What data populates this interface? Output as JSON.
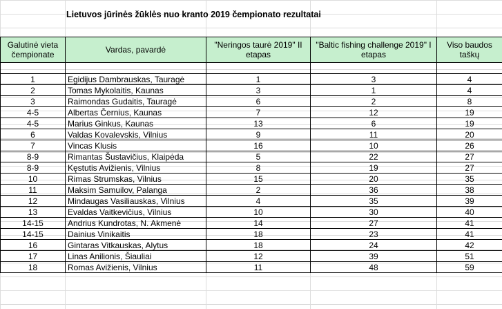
{
  "title": "Lietuvos jūrinės žūklės nuo kranto 2019 čempionato rezultatai",
  "headers": {
    "place": "Galutinė vieta čempionate",
    "name": "Vardas, pavardė",
    "stage2": "\"Neringos taurė 2019\" II etapas",
    "stage1": "\"Baltic fishing challenge 2019\" I etapas",
    "total": "Viso baudos taškų"
  },
  "header_fill": "#c6efce",
  "rows": [
    {
      "place": "1",
      "name": "Egidijus Dambrauskas, Tauragė",
      "s2": "1",
      "s1": "3",
      "total": "4"
    },
    {
      "place": "2",
      "name": "Tomas Mykolaitis, Kaunas",
      "s2": "3",
      "s1": "1",
      "total": "4"
    },
    {
      "place": "3",
      "name": "Raimondas Gudaitis, Tauragė",
      "s2": "6",
      "s1": "2",
      "total": "8"
    },
    {
      "place": "4-5",
      "name": "Albertas Černius, Kaunas",
      "s2": "7",
      "s1": "12",
      "total": "19"
    },
    {
      "place": "4-5",
      "name": "Marius Ginkus, Kaunas",
      "s2": "13",
      "s1": "6",
      "total": "19"
    },
    {
      "place": "6",
      "name": "Valdas Kovalevskis, Vilnius",
      "s2": "9",
      "s1": "11",
      "total": "20"
    },
    {
      "place": "7",
      "name": "Vincas Klusis",
      "s2": "16",
      "s1": "10",
      "total": "26"
    },
    {
      "place": "8-9",
      "name": "Rimantas Šustavičius, Klaipėda",
      "s2": "5",
      "s1": "22",
      "total": "27"
    },
    {
      "place": "8-9",
      "name": "Kęstutis Avižienis, Vilnius",
      "s2": "8",
      "s1": "19",
      "total": "27"
    },
    {
      "place": "10",
      "name": "Rimas Strumskas, Vilnius",
      "s2": "15",
      "s1": "20",
      "total": "35"
    },
    {
      "place": "11",
      "name": "Maksim Samuilov, Palanga",
      "s2": "2",
      "s1": "36",
      "total": "38"
    },
    {
      "place": "12",
      "name": "Mindaugas Vasiliauskas, Vilnius",
      "s2": "4",
      "s1": "35",
      "total": "39"
    },
    {
      "place": "13",
      "name": "Evaldas Vaitkevičius, Vilnius",
      "s2": "10",
      "s1": "30",
      "total": "40"
    },
    {
      "place": "14-15",
      "name": "Andrius Kundrotas, N. Akmenė",
      "s2": "14",
      "s1": "27",
      "total": "41"
    },
    {
      "place": "14-15",
      "name": "Dainius Vinikaitis",
      "s2": "18",
      "s1": "23",
      "total": "41"
    },
    {
      "place": "16",
      "name": "Gintaras Vitkauskas, Alytus",
      "s2": "18",
      "s1": "24",
      "total": "42"
    },
    {
      "place": "17",
      "name": "Linas Anilionis, Šiauliai",
      "s2": "12",
      "s1": "39",
      "total": "51"
    },
    {
      "place": "18",
      "name": "Romas Avižienis, Vilnius",
      "s2": "11",
      "s1": "48",
      "total": "59"
    }
  ]
}
